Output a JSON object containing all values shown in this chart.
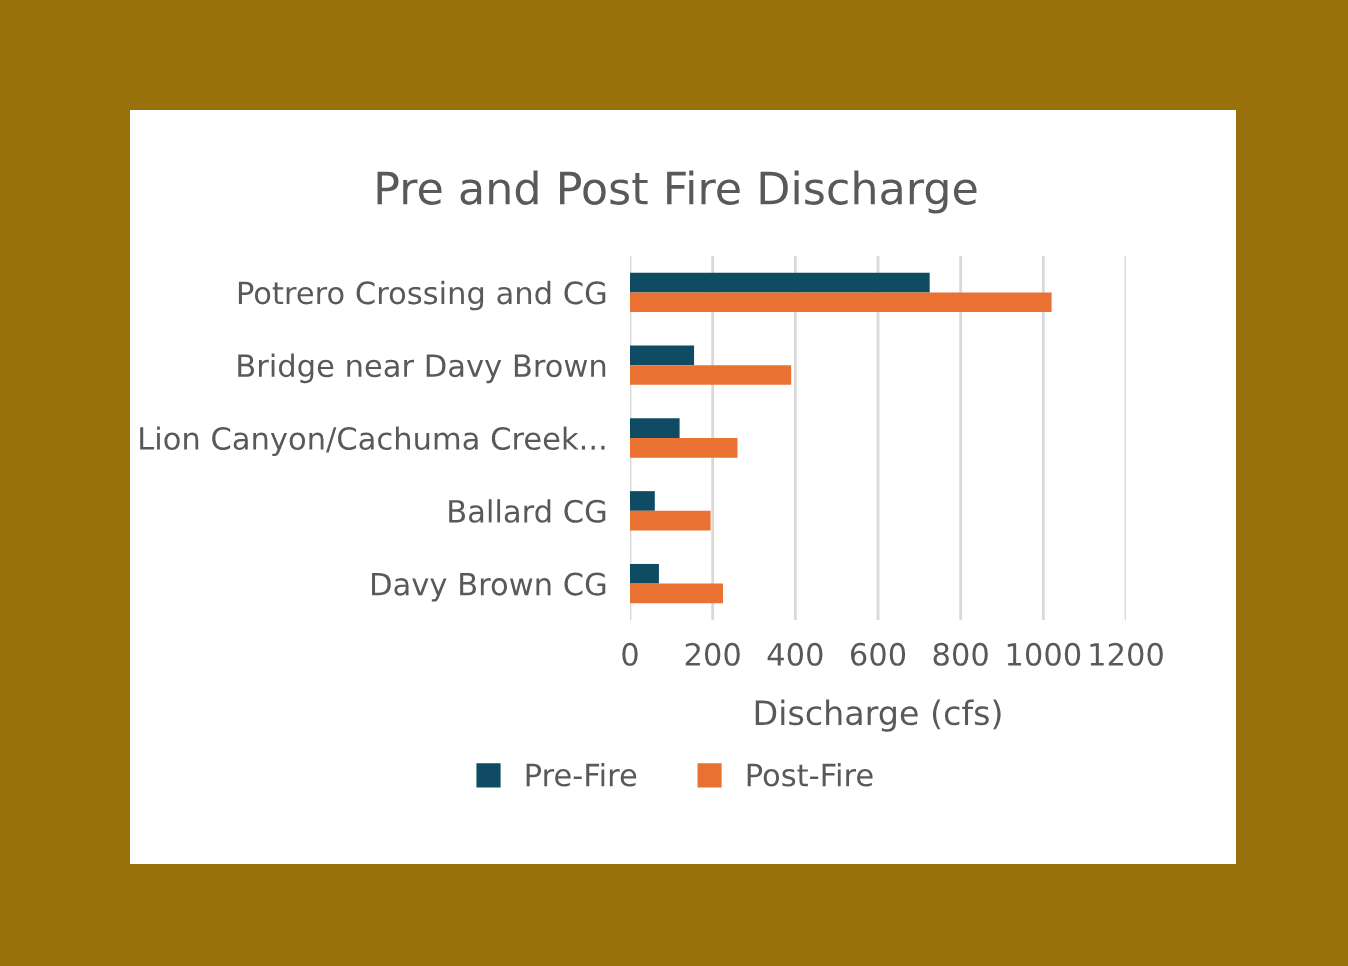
{
  "chart_data": {
    "type": "bar",
    "orientation": "horizontal",
    "title": "Pre and Post Fire Discharge",
    "xlabel": "Discharge (cfs)",
    "categories": [
      "Potrero Crossing and CG",
      "Bridge near Davy Brown",
      "Lion Canyon/Cachuma Creek...",
      "Ballard CG",
      "Davy Brown CG"
    ],
    "series": [
      {
        "name": "Pre-Fire",
        "color": "#0f4c63",
        "values": [
          725,
          155,
          120,
          60,
          70
        ]
      },
      {
        "name": "Post-Fire",
        "color": "#e97132",
        "values": [
          1020,
          390,
          260,
          195,
          225
        ]
      }
    ],
    "xlim": [
      0,
      1200
    ],
    "xticks": [
      0,
      200,
      400,
      600,
      800,
      1000,
      1200
    ],
    "grid": "x",
    "legend": "bottom"
  }
}
